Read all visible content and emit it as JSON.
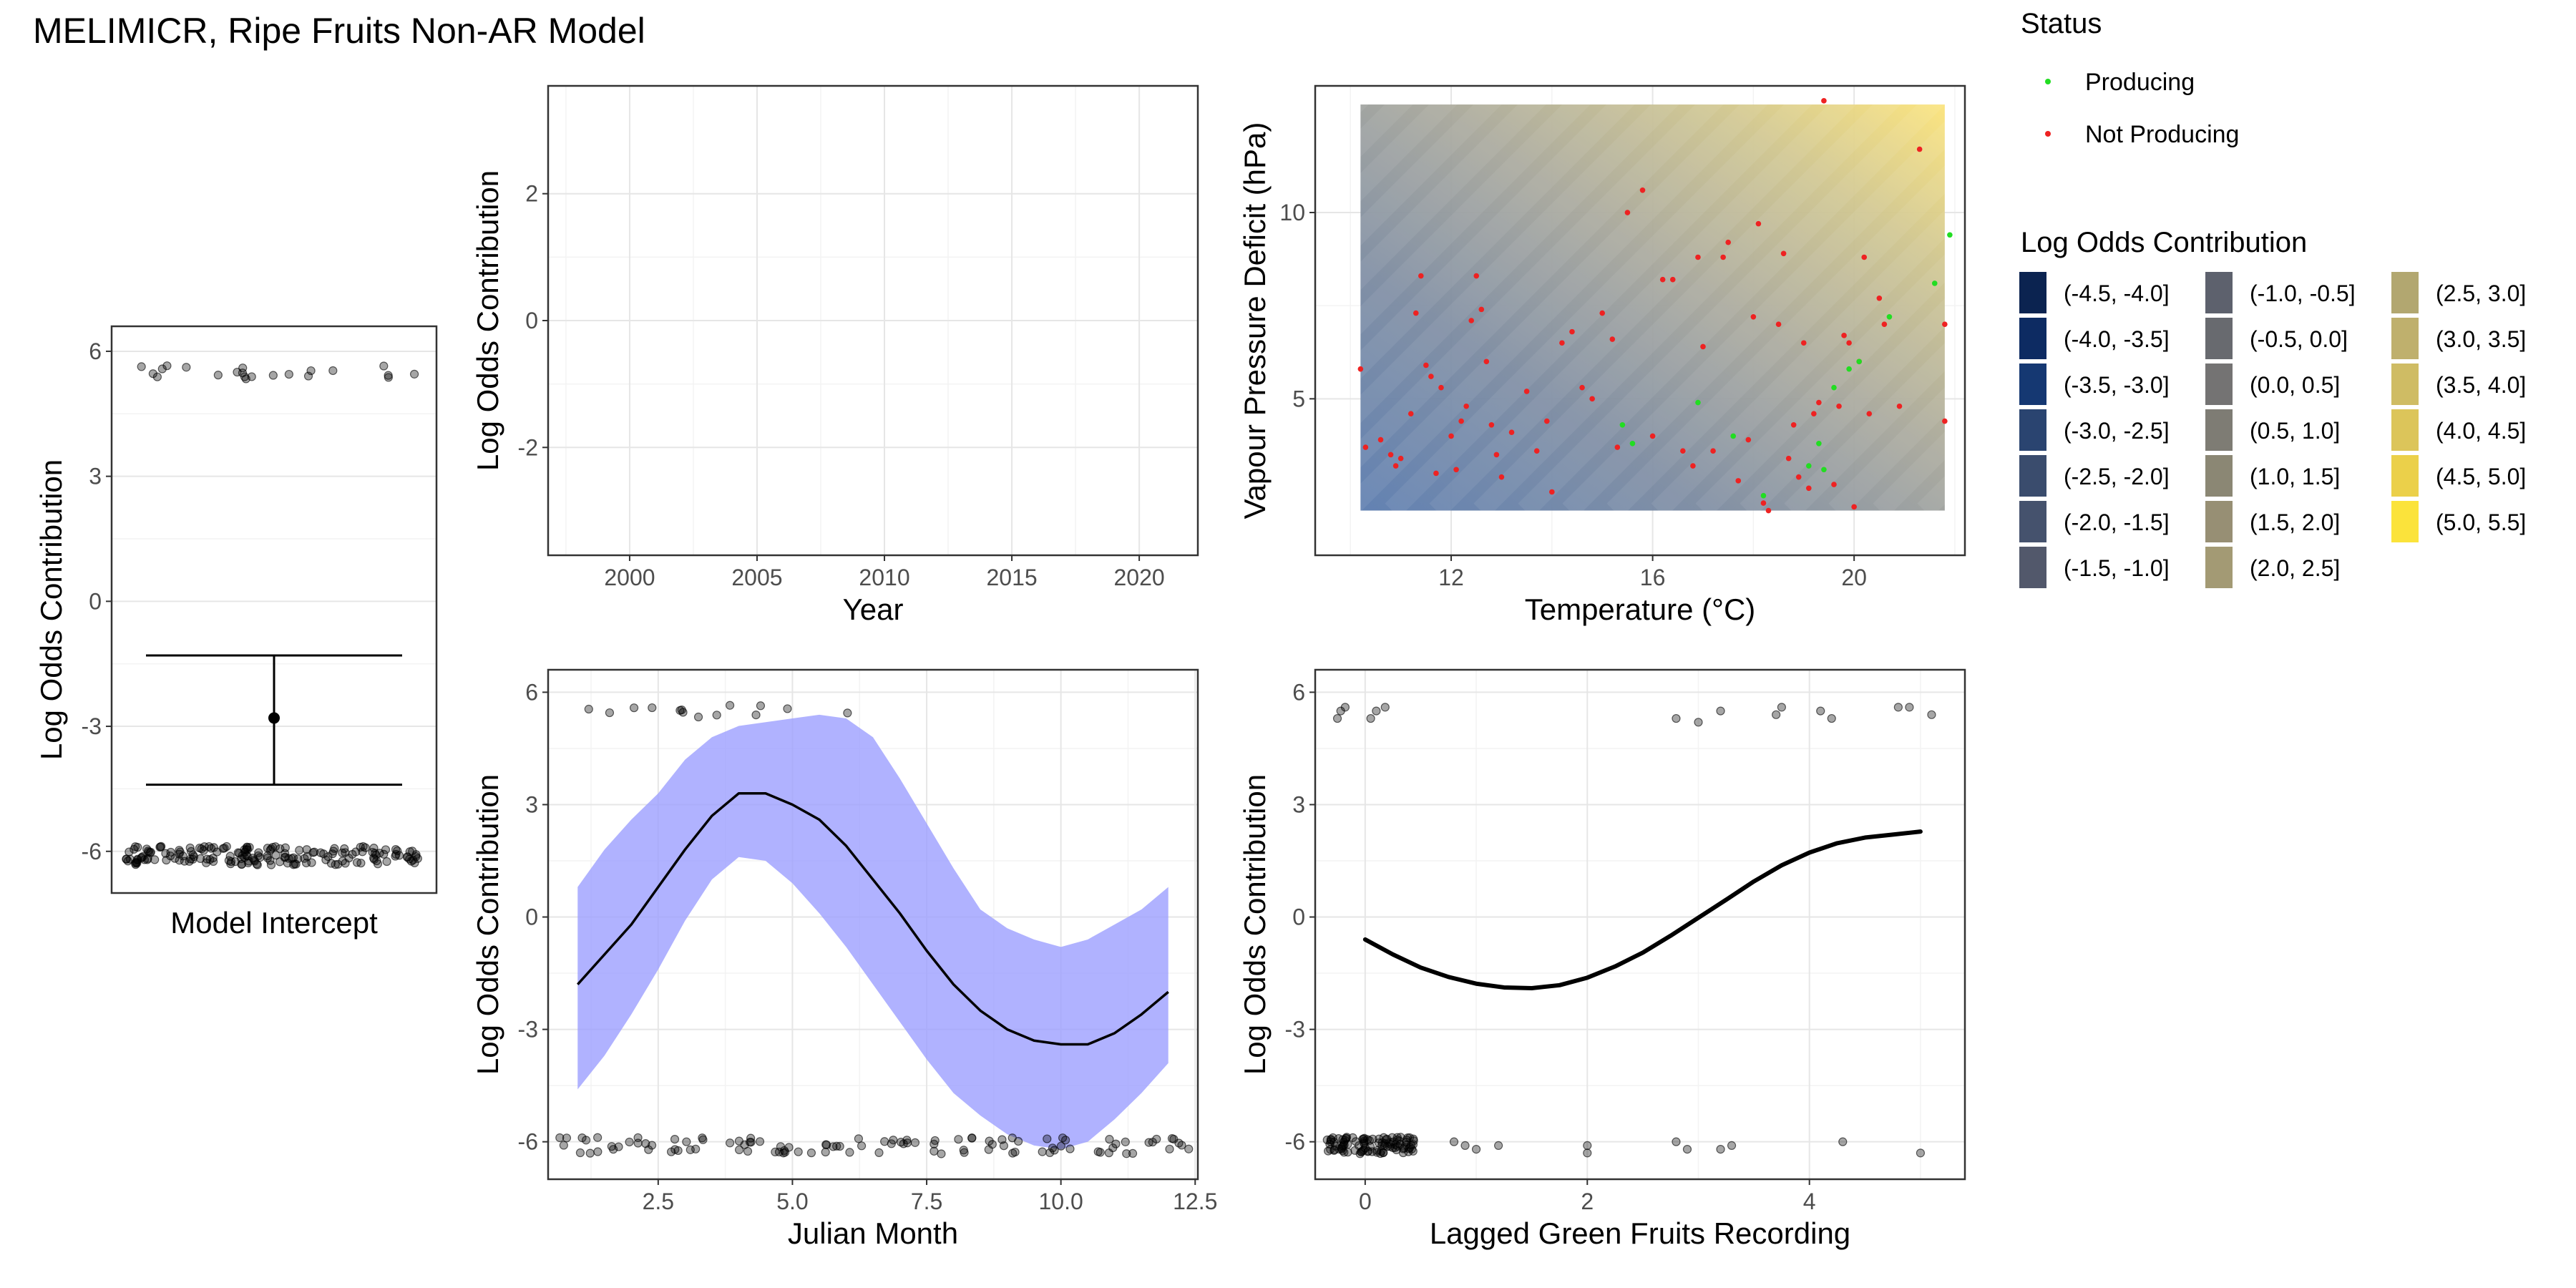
{
  "figure_title": "MELIMICR, Ripe Fruits Non-AR Model",
  "colors": {
    "panel_border": "#333333",
    "grid_major": "#e6e6e6",
    "grid_minor": "#f3f3f3",
    "point": "#000000",
    "ribbon": "#9a9cff",
    "producing": "#22dd22",
    "not_producing": "#ee2222"
  },
  "legend_status": {
    "title": "Status",
    "items": [
      {
        "label": "Producing",
        "color": "#22dd22"
      },
      {
        "label": "Not Producing",
        "color": "#ee2222"
      }
    ]
  },
  "legend_log_odds": {
    "title": "Log Odds Contribution",
    "items": [
      {
        "label": "(-4.5, -4.0]",
        "color": "#0b2350"
      },
      {
        "label": "(-4.0, -3.5]",
        "color": "#0d2b62"
      },
      {
        "label": "(-3.5, -3.0]",
        "color": "#153872"
      },
      {
        "label": "(-3.0, -2.5]",
        "color": "#2a4470"
      },
      {
        "label": "(-2.5, -2.0]",
        "color": "#3a4c6d"
      },
      {
        "label": "(-2.0, -1.5]",
        "color": "#45526d"
      },
      {
        "label": "(-1.5, -1.0]",
        "color": "#52586b"
      },
      {
        "label": "(-1.0, -0.5]",
        "color": "#5d616d"
      },
      {
        "label": "(-0.5, 0.0]",
        "color": "#686a6f"
      },
      {
        "label": "(0.0, 0.5]",
        "color": "#747373"
      },
      {
        "label": "(0.5, 1.0]",
        "color": "#7e7c74"
      },
      {
        "label": "(1.0, 1.5]",
        "color": "#8b8774"
      },
      {
        "label": "(1.5, 2.0]",
        "color": "#978f74"
      },
      {
        "label": "(2.0, 2.5]",
        "color": "#a39a74"
      },
      {
        "label": "(2.5, 3.0]",
        "color": "#b2a770"
      },
      {
        "label": "(3.0, 3.5]",
        "color": "#bfb06d"
      },
      {
        "label": "(3.5, 4.0]",
        "color": "#cfbc64"
      },
      {
        "label": "(4.0, 4.5]",
        "color": "#dcc55a"
      },
      {
        "label": "(4.5, 5.0]",
        "color": "#ebd04a"
      },
      {
        "label": "(5.0, 5.5]",
        "color": "#fbe33b"
      }
    ]
  },
  "chart_data": [
    {
      "id": "intercept",
      "type": "scatter",
      "xlabel": "Model Intercept",
      "ylabel": "Log Odds Contribution",
      "ylim": [
        -7,
        6.6
      ],
      "yticks": [
        -6,
        -3,
        0,
        3,
        6
      ],
      "ytick_labels": [
        "-6",
        "-3",
        "0",
        "3",
        "6"
      ],
      "estimate": -2.8,
      "ci": [
        -4.4,
        -1.3
      ],
      "jitter_points": {
        "y_high": 5.5,
        "n_high": 22,
        "y_low": -6.1,
        "n_low": 180
      }
    },
    {
      "id": "year",
      "type": "line",
      "xlabel": "Year",
      "ylabel": "Log Odds Contribution",
      "xlim": [
        1996.8,
        2022.3
      ],
      "ylim": [
        -3.7,
        3.7
      ],
      "xticks": [
        2000,
        2005,
        2010,
        2015,
        2020
      ],
      "xtick_labels": [
        "2000",
        "2005",
        "2010",
        "2015",
        "2020"
      ],
      "yticks": [
        -2,
        0,
        2
      ],
      "ytick_labels": [
        "-2",
        "0",
        "2"
      ],
      "series": []
    },
    {
      "id": "temp_vpd",
      "type": "heatmap",
      "xlabel": "Temperature (°C)",
      "ylabel": "Vapour Pressure Deficit (hPa)",
      "xlim": [
        9.3,
        22.2
      ],
      "ylim": [
        0.8,
        13.4
      ],
      "xticks": [
        12,
        16,
        20
      ],
      "xtick_labels": [
        "12",
        "16",
        "20"
      ],
      "yticks": [
        5,
        10
      ],
      "ytick_labels": [
        "5",
        "10"
      ],
      "surface_extent": {
        "x": [
          10.2,
          21.8
        ],
        "y": [
          2.0,
          12.9
        ]
      },
      "producing": [
        [
          15.4,
          4.3
        ],
        [
          15.6,
          3.8
        ],
        [
          16.9,
          4.9
        ],
        [
          17.6,
          4.0
        ],
        [
          18.2,
          2.4
        ],
        [
          19.1,
          3.2
        ],
        [
          19.3,
          3.8
        ],
        [
          19.6,
          5.3
        ],
        [
          19.9,
          5.8
        ],
        [
          20.1,
          6.0
        ],
        [
          20.7,
          7.2
        ],
        [
          21.6,
          8.1
        ],
        [
          21.9,
          9.4
        ],
        [
          19.4,
          3.1
        ]
      ],
      "not_producing": [
        [
          10.2,
          5.8
        ],
        [
          10.3,
          3.7
        ],
        [
          10.6,
          3.9
        ],
        [
          10.8,
          3.5
        ],
        [
          10.9,
          3.2
        ],
        [
          11.0,
          3.4
        ],
        [
          11.2,
          4.6
        ],
        [
          11.3,
          7.3
        ],
        [
          11.4,
          8.3
        ],
        [
          11.5,
          5.9
        ],
        [
          11.6,
          5.6
        ],
        [
          11.7,
          3.0
        ],
        [
          11.8,
          5.3
        ],
        [
          12.0,
          4.0
        ],
        [
          12.1,
          3.1
        ],
        [
          12.2,
          4.4
        ],
        [
          12.3,
          4.8
        ],
        [
          12.4,
          7.1
        ],
        [
          12.5,
          8.3
        ],
        [
          12.6,
          7.4
        ],
        [
          12.7,
          6.0
        ],
        [
          12.8,
          4.3
        ],
        [
          12.9,
          3.5
        ],
        [
          13.0,
          2.9
        ],
        [
          13.2,
          4.1
        ],
        [
          13.5,
          5.2
        ],
        [
          13.7,
          3.6
        ],
        [
          13.9,
          4.4
        ],
        [
          14.0,
          2.5
        ],
        [
          14.2,
          6.5
        ],
        [
          14.4,
          6.8
        ],
        [
          14.6,
          5.3
        ],
        [
          14.8,
          5.0
        ],
        [
          15.0,
          7.3
        ],
        [
          15.2,
          6.6
        ],
        [
          15.3,
          3.7
        ],
        [
          15.5,
          10.0
        ],
        [
          15.8,
          10.6
        ],
        [
          16.0,
          4.0
        ],
        [
          16.2,
          8.2
        ],
        [
          16.4,
          8.2
        ],
        [
          16.6,
          3.6
        ],
        [
          16.8,
          3.2
        ],
        [
          16.9,
          8.8
        ],
        [
          17.0,
          6.4
        ],
        [
          17.2,
          3.6
        ],
        [
          17.4,
          8.8
        ],
        [
          17.5,
          9.2
        ],
        [
          17.7,
          2.8
        ],
        [
          17.9,
          3.9
        ],
        [
          18.0,
          7.2
        ],
        [
          18.1,
          9.7
        ],
        [
          18.2,
          2.2
        ],
        [
          18.3,
          2.0
        ],
        [
          18.5,
          7.0
        ],
        [
          18.6,
          8.9
        ],
        [
          18.7,
          3.4
        ],
        [
          18.8,
          4.3
        ],
        [
          19.0,
          6.5
        ],
        [
          19.1,
          2.6
        ],
        [
          19.2,
          4.6
        ],
        [
          19.4,
          13.0
        ],
        [
          19.6,
          2.7
        ],
        [
          19.7,
          4.8
        ],
        [
          19.8,
          6.7
        ],
        [
          19.9,
          6.5
        ],
        [
          20.0,
          2.1
        ],
        [
          20.1,
          6.0
        ],
        [
          20.2,
          8.8
        ],
        [
          20.3,
          4.6
        ],
        [
          20.5,
          7.7
        ],
        [
          20.6,
          7.0
        ],
        [
          20.9,
          4.8
        ],
        [
          21.3,
          11.7
        ],
        [
          21.8,
          4.4
        ],
        [
          21.8,
          7.0
        ],
        [
          19.3,
          4.9
        ],
        [
          18.9,
          2.9
        ]
      ]
    },
    {
      "id": "julian_month",
      "type": "line",
      "xlabel": "Julian Month",
      "ylabel": "Log Odds Contribution",
      "xlim": [
        0.45,
        12.55
      ],
      "ylim": [
        -7,
        6.6
      ],
      "xticks": [
        2.5,
        5.0,
        7.5,
        10.0,
        12.5
      ],
      "xtick_labels": [
        "2.5",
        "5.0",
        "7.5",
        "10.0",
        "12.5"
      ],
      "yticks": [
        -6,
        -3,
        0,
        3,
        6
      ],
      "ytick_labels": [
        "-6",
        "-3",
        "0",
        "3",
        "6"
      ],
      "x": [
        1.0,
        1.5,
        2.0,
        2.5,
        3.0,
        3.5,
        4.0,
        4.5,
        5.0,
        5.5,
        6.0,
        6.5,
        7.0,
        7.5,
        8.0,
        8.5,
        9.0,
        9.5,
        10.0,
        10.5,
        11.0,
        11.5,
        12.0
      ],
      "estimate": [
        -1.8,
        -1.0,
        -0.2,
        0.8,
        1.8,
        2.7,
        3.3,
        3.3,
        3.0,
        2.6,
        1.9,
        1.0,
        0.1,
        -0.9,
        -1.8,
        -2.5,
        -3.0,
        -3.3,
        -3.4,
        -3.4,
        -3.1,
        -2.6,
        -2.0
      ],
      "lower": [
        -4.6,
        -3.7,
        -2.6,
        -1.4,
        -0.1,
        1.0,
        1.6,
        1.5,
        0.9,
        0.1,
        -0.8,
        -1.8,
        -2.8,
        -3.8,
        -4.7,
        -5.3,
        -5.8,
        -6.1,
        -6.2,
        -6.0,
        -5.4,
        -4.7,
        -3.9
      ],
      "upper": [
        0.8,
        1.8,
        2.6,
        3.3,
        4.2,
        4.8,
        5.1,
        5.2,
        5.3,
        5.4,
        5.3,
        4.8,
        3.7,
        2.5,
        1.3,
        0.2,
        -0.3,
        -0.6,
        -0.8,
        -0.6,
        -0.2,
        0.2,
        0.8
      ],
      "jitter_points": {
        "y_high": 5.5,
        "high_x": [
          1.1,
          1.5,
          2.1,
          2.5,
          2.9,
          3.0,
          3.1,
          3.3,
          3.6,
          3.7,
          4.3,
          4.5,
          5.0,
          6.0
        ],
        "y_low": -6.1,
        "n_low": 110
      }
    },
    {
      "id": "lagged_green",
      "type": "line",
      "xlabel": "Lagged Green Fruits Recording",
      "ylabel": "Log Odds Contribution",
      "xlim": [
        -0.45,
        5.4
      ],
      "ylim": [
        -7,
        6.6
      ],
      "xticks": [
        0,
        2,
        4
      ],
      "xtick_labels": [
        "0",
        "2",
        "4"
      ],
      "yticks": [
        -6,
        -3,
        0,
        3,
        6
      ],
      "ytick_labels": [
        "-6",
        "-3",
        "0",
        "3",
        "6"
      ],
      "x": [
        0.0,
        0.25,
        0.5,
        0.75,
        1.0,
        1.25,
        1.5,
        1.75,
        2.0,
        2.25,
        2.5,
        2.75,
        3.0,
        3.25,
        3.5,
        3.75,
        4.0,
        4.25,
        4.5,
        4.75,
        5.0
      ],
      "estimate": [
        -0.6,
        -1.0,
        -1.35,
        -1.6,
        -1.78,
        -1.88,
        -1.9,
        -1.82,
        -1.62,
        -1.32,
        -0.95,
        -0.5,
        -0.02,
        0.46,
        0.95,
        1.38,
        1.72,
        1.97,
        2.12,
        2.2,
        2.28
      ],
      "high_points": [
        [
          -0.25,
          5.3
        ],
        [
          -0.22,
          5.5
        ],
        [
          -0.18,
          5.6
        ],
        [
          0.05,
          5.3
        ],
        [
          0.1,
          5.5
        ],
        [
          0.18,
          5.6
        ],
        [
          2.8,
          5.3
        ],
        [
          3.0,
          5.2
        ],
        [
          3.2,
          5.5
        ],
        [
          3.7,
          5.4
        ],
        [
          3.75,
          5.6
        ],
        [
          4.1,
          5.5
        ],
        [
          4.2,
          5.3
        ],
        [
          4.8,
          5.6
        ],
        [
          4.9,
          5.6
        ],
        [
          5.1,
          5.4
        ]
      ],
      "low_points": [
        [
          0.8,
          -6.0
        ],
        [
          0.9,
          -6.1
        ],
        [
          1.0,
          -6.2
        ],
        [
          1.2,
          -6.1
        ],
        [
          2.0,
          -6.1
        ],
        [
          2.0,
          -6.3
        ],
        [
          2.8,
          -6.0
        ],
        [
          2.9,
          -6.2
        ],
        [
          3.2,
          -6.2
        ],
        [
          3.3,
          -6.1
        ],
        [
          4.3,
          -6.0
        ],
        [
          5.0,
          -6.3
        ]
      ],
      "low_cluster": {
        "xmin": -0.35,
        "xmax": 0.45,
        "n": 100
      }
    }
  ]
}
